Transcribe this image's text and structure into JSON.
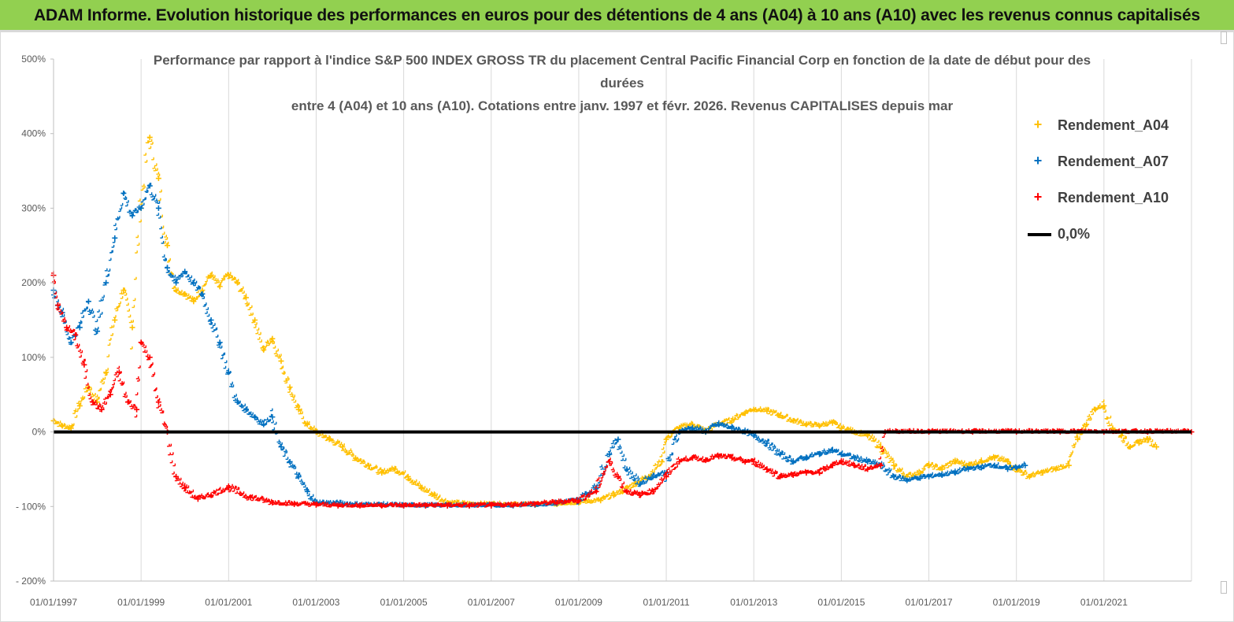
{
  "banner": {
    "title": "ADAM Informe. Evolution historique des performances en euros pour des détentions de 4 ans (A04) à 10 ans (A10) avec les revenus connus capitalisés"
  },
  "chart_data": {
    "type": "scatter",
    "title_lines": [
      "Performance par rapport à l'indice S&P 500 INDEX GROSS TR  du placement Central Pacific Financial Corp en fonction de la date de début pour des",
      "durées",
      "entre 4 (A04) et 10 ans (A10). Cotations entre janv. 1997 et févr. 2026. Revenus CAPITALISES depuis mar"
    ],
    "xlabel": "",
    "ylabel": "",
    "ylim": [
      -200,
      500
    ],
    "xlim": [
      1997.0,
      2023.0
    ],
    "y_ticks": [
      -200,
      -100,
      0,
      100,
      200,
      300,
      400,
      500
    ],
    "y_tick_labels": [
      "- 200%",
      "- 100%",
      "0%",
      "100%",
      "200%",
      "300%",
      "400%",
      "500%"
    ],
    "x_ticks": [
      1997,
      1999,
      2001,
      2003,
      2005,
      2007,
      2009,
      2011,
      2013,
      2015,
      2017,
      2019,
      2021
    ],
    "x_tick_labels": [
      "01/01/1997",
      "01/01/1999",
      "01/01/2001",
      "01/01/2003",
      "01/01/2005",
      "01/01/2007",
      "01/01/2009",
      "01/01/2011",
      "01/01/2013",
      "01/01/2015",
      "01/01/2017",
      "01/01/2019",
      "01/01/2021"
    ],
    "grid": "vertical",
    "legend_position": "top-right",
    "series": [
      {
        "name": "Rendement_A04",
        "color": "#ffc000",
        "x": [
          1997.0,
          1997.2,
          1997.4,
          1997.6,
          1997.8,
          1998.0,
          1998.2,
          1998.4,
          1998.6,
          1998.8,
          1999.0,
          1999.2,
          1999.4,
          1999.6,
          1999.8,
          2000.0,
          2000.2,
          2000.4,
          2000.6,
          2000.8,
          2001.0,
          2001.2,
          2001.4,
          2001.6,
          2001.8,
          2002.0,
          2002.2,
          2002.4,
          2002.6,
          2002.8,
          2003.0,
          2003.3,
          2003.6,
          2003.9,
          2004.2,
          2004.5,
          2004.8,
          2005.1,
          2005.4,
          2005.7,
          2006.0,
          2006.5,
          2007.0,
          2007.5,
          2008.0,
          2008.5,
          2009.0,
          2009.5,
          2009.8,
          2010.0,
          2010.3,
          2010.6,
          2010.9,
          2011.0,
          2011.3,
          2011.6,
          2011.9,
          2012.2,
          2012.5,
          2012.8,
          2013.0,
          2013.3,
          2013.6,
          2013.9,
          2014.2,
          2014.5,
          2014.8,
          2015.0,
          2015.3,
          2015.6,
          2015.9,
          2016.2,
          2016.5,
          2016.8,
          2017.0,
          2017.3,
          2017.6,
          2017.9,
          2018.2,
          2018.5,
          2018.8,
          2019.0,
          2019.3,
          2019.6,
          2019.9,
          2020.2,
          2020.4,
          2020.6,
          2020.8,
          2021.0,
          2021.2,
          2021.4,
          2021.6,
          2021.8,
          2022.0,
          2022.2
        ],
        "y": [
          15,
          8,
          5,
          35,
          60,
          40,
          80,
          150,
          190,
          140,
          300,
          395,
          340,
          250,
          190,
          185,
          175,
          190,
          210,
          195,
          210,
          200,
          180,
          150,
          110,
          125,
          95,
          60,
          30,
          10,
          0,
          -10,
          -20,
          -35,
          -45,
          -55,
          -50,
          -60,
          -75,
          -85,
          -95,
          -97,
          -97,
          -98,
          -98,
          -97,
          -95,
          -92,
          -85,
          -80,
          -70,
          -60,
          -40,
          -10,
          5,
          10,
          0,
          10,
          15,
          25,
          30,
          28,
          22,
          15,
          10,
          8,
          12,
          5,
          0,
          -5,
          -20,
          -45,
          -60,
          -55,
          -45,
          -50,
          -40,
          -45,
          -40,
          -35,
          -40,
          -50,
          -60,
          -55,
          -50,
          -45,
          -10,
          10,
          30,
          35,
          5,
          -5,
          -20,
          -15,
          -10,
          -20
        ]
      },
      {
        "name": "Rendement_A07",
        "color": "#0070c0",
        "x": [
          1997.0,
          1997.2,
          1997.4,
          1997.6,
          1997.8,
          1998.0,
          1998.2,
          1998.4,
          1998.6,
          1998.8,
          1999.0,
          1999.2,
          1999.4,
          1999.6,
          1999.8,
          2000.0,
          2000.2,
          2000.4,
          2000.6,
          2000.8,
          2001.0,
          2001.2,
          2001.4,
          2001.6,
          2001.8,
          2002.0,
          2002.2,
          2002.4,
          2002.6,
          2002.8,
          2003.0,
          2003.5,
          2004.0,
          2004.5,
          2005.0,
          2005.5,
          2006.0,
          2006.5,
          2007.0,
          2007.5,
          2008.0,
          2008.5,
          2009.0,
          2009.4,
          2009.7,
          2009.9,
          2010.1,
          2010.4,
          2010.7,
          2011.0,
          2011.3,
          2011.6,
          2011.9,
          2012.2,
          2012.5,
          2012.8,
          2013.0,
          2013.3,
          2013.6,
          2013.9,
          2014.2,
          2014.5,
          2014.8,
          2015.0,
          2015.3,
          2015.6,
          2015.9,
          2016.2,
          2016.5,
          2016.8,
          2017.0,
          2017.3,
          2017.6,
          2017.9,
          2018.2,
          2018.5,
          2018.8,
          2019.0,
          2019.2
        ],
        "y": [
          190,
          160,
          120,
          140,
          175,
          135,
          200,
          260,
          320,
          290,
          300,
          330,
          300,
          220,
          200,
          215,
          200,
          185,
          150,
          120,
          80,
          40,
          30,
          20,
          10,
          20,
          -20,
          -40,
          -60,
          -80,
          -95,
          -96,
          -98,
          -98,
          -99,
          -99,
          -99,
          -99,
          -99,
          -99,
          -98,
          -96,
          -92,
          -75,
          -30,
          -10,
          -50,
          -70,
          -60,
          -55,
          0,
          5,
          0,
          10,
          5,
          0,
          -5,
          -15,
          -30,
          -40,
          -35,
          -30,
          -25,
          -30,
          -35,
          -40,
          -45,
          -60,
          -65,
          -62,
          -60,
          -58,
          -55,
          -50,
          -48,
          -45,
          -50,
          -48,
          -45
        ]
      },
      {
        "name": "Rendement_A10",
        "color": "#ff0000",
        "x": [
          1997.0,
          1997.1,
          1997.3,
          1997.5,
          1997.7,
          1997.9,
          1998.1,
          1998.3,
          1998.5,
          1998.7,
          1998.9,
          1999.0,
          1999.2,
          1999.4,
          1999.6,
          1999.8,
          2000.0,
          2000.3,
          2000.6,
          2001.0,
          2001.5,
          2002.0,
          2002.5,
          2003.0,
          2003.5,
          2004.0,
          2004.5,
          2005.0,
          2005.5,
          2006.0,
          2006.5,
          2007.0,
          2007.5,
          2008.0,
          2008.5,
          2009.0,
          2009.4,
          2009.7,
          2009.9,
          2010.1,
          2010.4,
          2010.7,
          2011.0,
          2011.3,
          2011.6,
          2011.9,
          2012.2,
          2012.5,
          2012.8,
          2013.0,
          2013.3,
          2013.6,
          2013.9,
          2014.2,
          2014.5,
          2014.8,
          2015.0,
          2015.3,
          2015.6,
          2015.9,
          2016.0,
          2017.0,
          2018.0,
          2019.0,
          2020.0,
          2021.0,
          2022.0,
          2023.0
        ],
        "y": [
          210,
          170,
          140,
          130,
          90,
          40,
          30,
          50,
          80,
          40,
          30,
          120,
          100,
          40,
          0,
          -60,
          -75,
          -90,
          -85,
          -75,
          -88,
          -95,
          -97,
          -98,
          -99,
          -99,
          -99,
          -99,
          -99,
          -99,
          -99,
          -99,
          -98,
          -97,
          -95,
          -92,
          -80,
          -40,
          -60,
          -80,
          -85,
          -80,
          -60,
          -40,
          -35,
          -38,
          -33,
          -35,
          -40,
          -40,
          -50,
          -60,
          -58,
          -55,
          -55,
          -45,
          -40,
          -45,
          -50,
          -45,
          0,
          0,
          0,
          0,
          0,
          0,
          0,
          0
        ]
      },
      {
        "name": "0,0%",
        "color": "#000000",
        "x": [
          1997.0,
          2023.0
        ],
        "y": [
          0,
          0
        ]
      }
    ]
  }
}
